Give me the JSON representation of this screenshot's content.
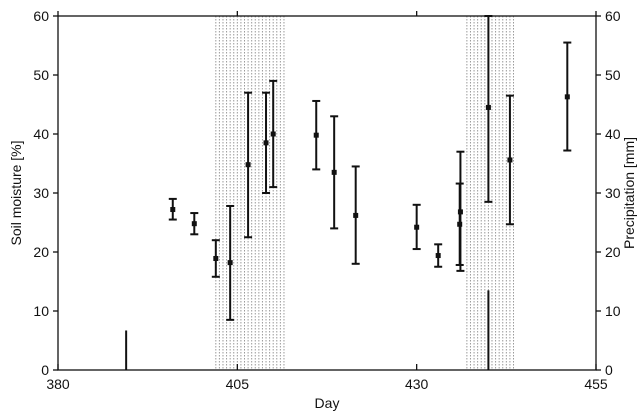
{
  "chart_data": {
    "type": "scatter",
    "title": "",
    "xlabel": "Day",
    "ylabel": "Soil moisture   [%]",
    "y2label": "Precipitation   [mm]",
    "xlim": [
      380,
      455
    ],
    "ylim": [
      0,
      60
    ],
    "y2lim": [
      0,
      60
    ],
    "xticks": [
      380,
      405,
      430,
      455
    ],
    "yticks": [
      0,
      10,
      20,
      30,
      40,
      50,
      60
    ],
    "y2ticks": [
      0,
      10,
      20,
      30,
      40,
      50,
      60
    ],
    "grid": false,
    "colors": {
      "mark": "#111111",
      "shade": "#9a9a9a",
      "frame": "#111111"
    },
    "series": [
      {
        "values": [
          {
            "x": 396,
            "y": 27.2,
            "low": 25.5,
            "high": 29.0
          },
          {
            "x": 399,
            "y": 24.8,
            "low": 23.0,
            "high": 26.6
          },
          {
            "x": 402,
            "y": 18.9,
            "low": 15.8,
            "high": 22.0
          },
          {
            "x": 404,
            "y": 18.2,
            "low": 8.5,
            "high": 27.8
          },
          {
            "x": 406.5,
            "y": 34.8,
            "low": 22.5,
            "high": 47.0
          },
          {
            "x": 409,
            "y": 38.5,
            "low": 30.0,
            "high": 47.0
          },
          {
            "x": 410,
            "y": 40.0,
            "low": 31.0,
            "high": 49.0
          },
          {
            "x": 416,
            "y": 39.8,
            "low": 34.0,
            "high": 45.6
          },
          {
            "x": 418.5,
            "y": 33.5,
            "low": 24.0,
            "high": 43.0
          },
          {
            "x": 421.5,
            "y": 26.2,
            "low": 18.0,
            "high": 34.5
          },
          {
            "x": 430,
            "y": 24.2,
            "low": 20.5,
            "high": 28.0
          },
          {
            "x": 433,
            "y": 19.4,
            "low": 17.5,
            "high": 21.3
          },
          {
            "x": 436,
            "y": 24.7,
            "low": 17.8,
            "high": 31.6
          },
          {
            "x": 436.1,
            "y": 26.8,
            "low": 16.8,
            "high": 37.0
          },
          {
            "x": 440,
            "y": 44.5,
            "low": 28.5,
            "high": 60.0
          },
          {
            "x": 443,
            "y": 35.6,
            "low": 24.7,
            "high": 46.5
          },
          {
            "x": 451,
            "y": 46.3,
            "low": 37.2,
            "high": 55.5
          }
        ]
      }
    ],
    "precipitation": [
      {
        "x": 389.5,
        "y": 6.7
      },
      {
        "x": 440,
        "y": 13.5
      }
    ],
    "shaded_days": [
      402,
      402.5,
      403,
      403.5,
      404,
      404.5,
      405,
      405.5,
      406,
      406.5,
      407,
      407.5,
      408,
      408.5,
      409,
      409.5,
      410,
      410.5,
      411,
      411.5,
      437,
      437.5,
      438,
      438.5,
      439,
      439.5,
      440,
      440.5,
      441,
      441.5,
      442,
      442.5,
      443,
      443.5
    ]
  }
}
